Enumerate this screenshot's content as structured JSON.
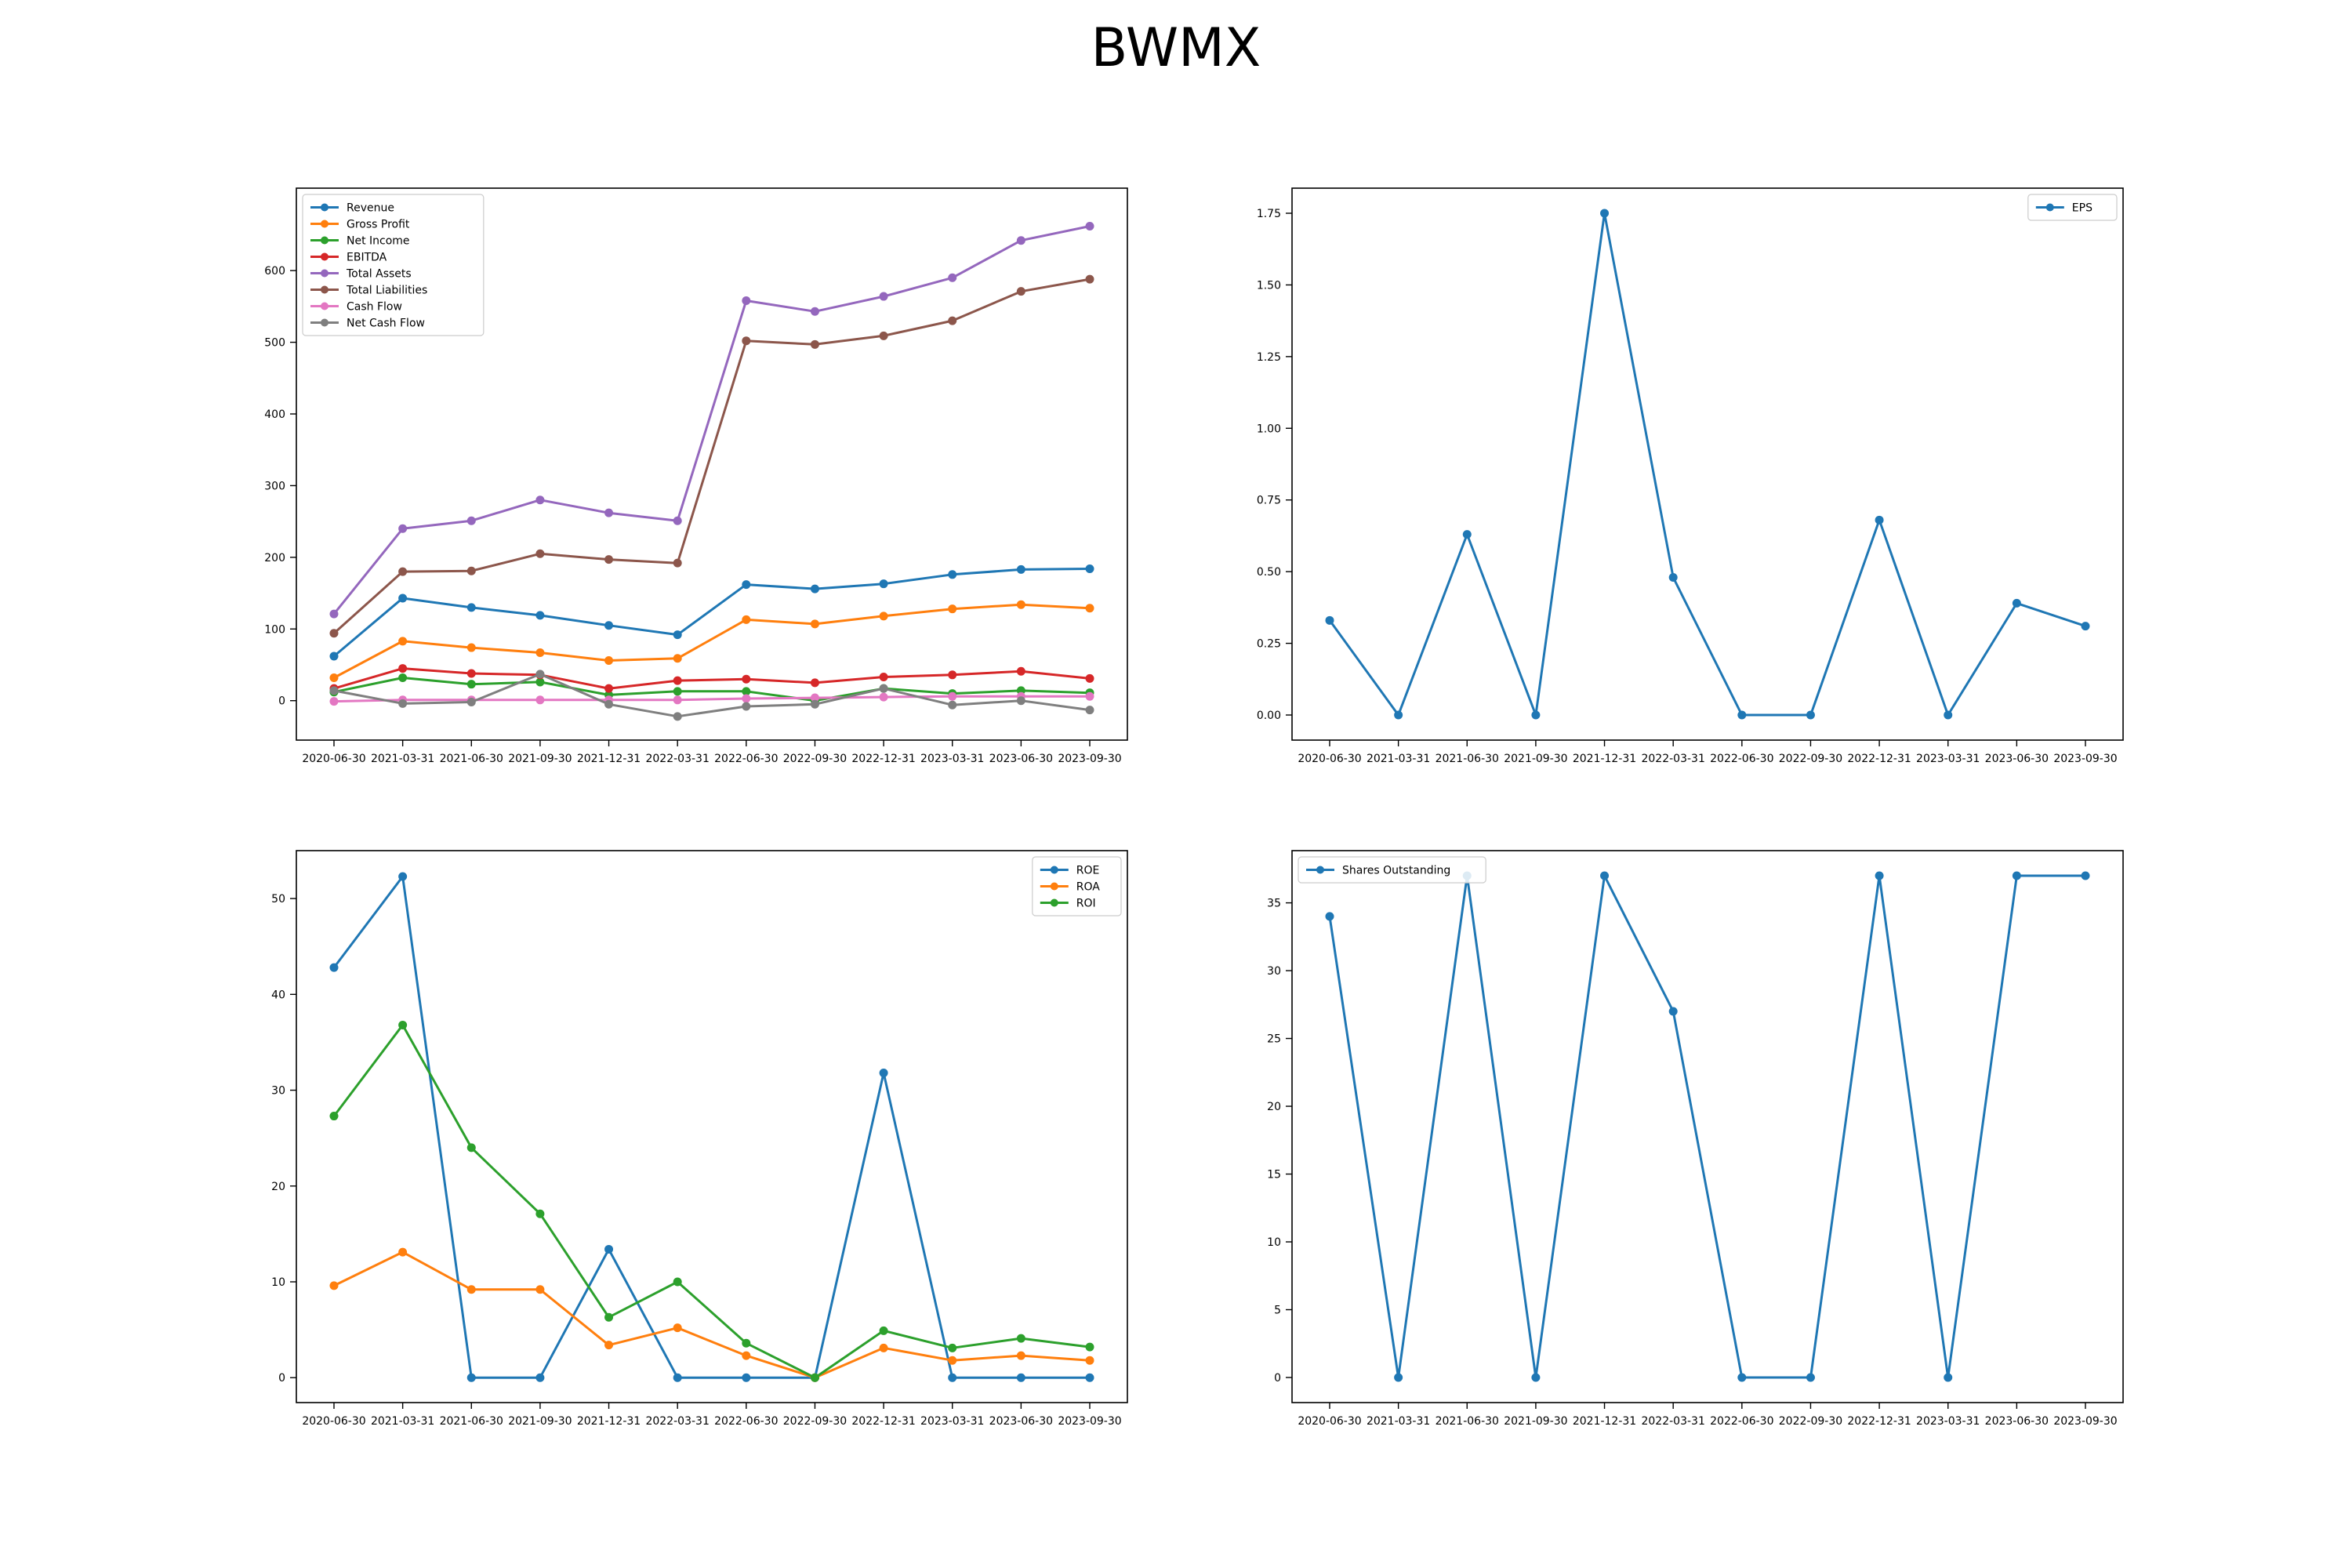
{
  "page": {
    "title": "BWMX"
  },
  "chart_data": [
    {
      "type": "line",
      "title": "",
      "legend_position": "top-left",
      "grid": false,
      "ylim": [
        -55,
        715
      ],
      "yticks": [
        0,
        100,
        200,
        300,
        400,
        500,
        600
      ],
      "categories": [
        "2020-06-30",
        "2021-03-31",
        "2021-06-30",
        "2021-09-30",
        "2021-12-31",
        "2022-03-31",
        "2022-06-30",
        "2022-09-30",
        "2022-12-31",
        "2023-03-31",
        "2023-06-30",
        "2023-09-30"
      ],
      "series": [
        {
          "name": "Revenue",
          "color": "#1f77b4",
          "values": [
            62,
            143,
            130,
            119,
            105,
            92,
            162,
            156,
            163,
            176,
            183,
            184
          ]
        },
        {
          "name": "Gross Profit",
          "color": "#ff7f0e",
          "values": [
            32,
            83,
            74,
            67,
            56,
            59,
            113,
            107,
            118,
            128,
            134,
            129
          ]
        },
        {
          "name": "Net Income",
          "color": "#2ca02c",
          "values": [
            12,
            32,
            23,
            26,
            8,
            13,
            13,
            0,
            17,
            10,
            14,
            11
          ]
        },
        {
          "name": "EBITDA",
          "color": "#d62728",
          "values": [
            17,
            45,
            38,
            36,
            17,
            28,
            30,
            25,
            33,
            36,
            41,
            31
          ]
        },
        {
          "name": "Total Assets",
          "color": "#9467bd",
          "values": [
            121,
            240,
            251,
            280,
            262,
            251,
            558,
            543,
            564,
            590,
            642,
            662
          ]
        },
        {
          "name": "Total Liabilities",
          "color": "#8c564b",
          "values": [
            94,
            180,
            181,
            205,
            197,
            192,
            502,
            497,
            509,
            530,
            571,
            588
          ]
        },
        {
          "name": "Cash Flow",
          "color": "#e377c2",
          "values": [
            -1,
            1,
            1,
            1,
            1,
            1,
            3,
            4,
            5,
            6,
            6,
            6
          ]
        },
        {
          "name": "Net Cash Flow",
          "color": "#7f7f7f",
          "values": [
            14,
            -4,
            -2,
            37,
            -5,
            -22,
            -8,
            -5,
            17,
            -6,
            0,
            -13
          ]
        }
      ]
    },
    {
      "type": "line",
      "title": "",
      "legend_position": "top-right",
      "grid": false,
      "ylim": [
        -0.0875,
        1.8375
      ],
      "yticks": [
        0.0,
        0.25,
        0.5,
        0.75,
        1.0,
        1.25,
        1.5,
        1.75
      ],
      "ytick_decimals": 2,
      "categories": [
        "2020-06-30",
        "2021-03-31",
        "2021-06-30",
        "2021-09-30",
        "2021-12-31",
        "2022-03-31",
        "2022-06-30",
        "2022-09-30",
        "2022-12-31",
        "2023-03-31",
        "2023-06-30",
        "2023-09-30"
      ],
      "series": [
        {
          "name": "EPS",
          "color": "#1f77b4",
          "values": [
            0.33,
            0.0,
            0.63,
            0.0,
            1.75,
            0.48,
            0.0,
            0.0,
            0.68,
            0.0,
            0.39,
            0.31
          ]
        }
      ]
    },
    {
      "type": "line",
      "title": "",
      "legend_position": "top-right",
      "grid": false,
      "ylim": [
        -2.6,
        55.0
      ],
      "yticks": [
        0,
        10,
        20,
        30,
        40,
        50
      ],
      "categories": [
        "2020-06-30",
        "2021-03-31",
        "2021-06-30",
        "2021-09-30",
        "2021-12-31",
        "2022-03-31",
        "2022-06-30",
        "2022-09-30",
        "2022-12-31",
        "2023-03-31",
        "2023-06-30",
        "2023-09-30"
      ],
      "series": [
        {
          "name": "ROE",
          "color": "#1f77b4",
          "values": [
            42.8,
            52.3,
            0.0,
            0.0,
            13.4,
            0.0,
            0.0,
            0.0,
            31.8,
            0.0,
            0.0,
            0.0
          ]
        },
        {
          "name": "ROA",
          "color": "#ff7f0e",
          "values": [
            9.6,
            13.1,
            9.2,
            9.2,
            3.4,
            5.2,
            2.3,
            0.0,
            3.1,
            1.8,
            2.3,
            1.8
          ]
        },
        {
          "name": "ROI",
          "color": "#2ca02c",
          "values": [
            27.3,
            36.8,
            24.0,
            17.1,
            6.3,
            10.0,
            3.6,
            0.0,
            4.9,
            3.1,
            4.1,
            3.2
          ]
        }
      ]
    },
    {
      "type": "line",
      "title": "",
      "legend_position": "top-left",
      "grid": false,
      "ylim": [
        -1.85,
        38.85
      ],
      "yticks": [
        0,
        5,
        10,
        15,
        20,
        25,
        30,
        35
      ],
      "categories": [
        "2020-06-30",
        "2021-03-31",
        "2021-06-30",
        "2021-09-30",
        "2021-12-31",
        "2022-03-31",
        "2022-06-30",
        "2022-09-30",
        "2022-12-31",
        "2023-03-31",
        "2023-06-30",
        "2023-09-30"
      ],
      "series": [
        {
          "name": "Shares Outstanding",
          "color": "#1f77b4",
          "values": [
            34,
            0,
            37,
            0,
            37,
            27,
            0,
            0,
            37,
            0,
            37,
            37
          ]
        }
      ]
    }
  ]
}
